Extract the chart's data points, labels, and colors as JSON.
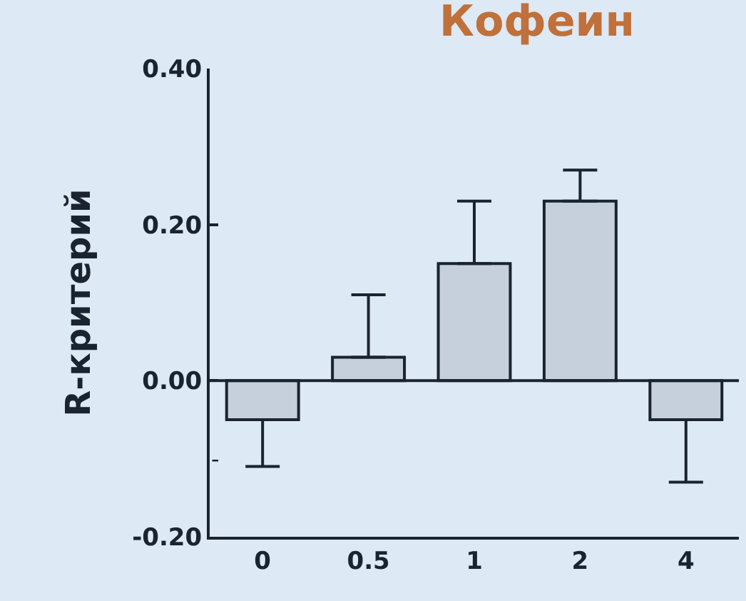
{
  "chart_data": {
    "type": "bar",
    "title": "Кофеин",
    "ylabel": "R-критерий",
    "categories": [
      "0",
      "0.5",
      "1",
      "2",
      "4"
    ],
    "series": [
      {
        "color": "#c5d0dc",
        "values": [
          -0.05,
          0.03,
          0.15,
          0.23,
          -0.05
        ],
        "errors": [
          [
            -0.11,
            -0.05
          ],
          [
            0.03,
            0.11
          ],
          [
            0.15,
            0.23
          ],
          [
            0.23,
            0.27
          ],
          [
            -0.13,
            -0.05
          ]
        ]
      }
    ],
    "ylim": [
      -0.2,
      0.4
    ],
    "yticks": [
      {
        "value": -0.2,
        "label": "-0.20"
      },
      {
        "value": 0,
        "label": "0.00"
      },
      {
        "value": 0.2,
        "label": "0.20"
      },
      {
        "value": 0.4,
        "label": "0.40"
      }
    ],
    "ref_lines": [
      {
        "axis": "y",
        "value": 0,
        "color": "#1a2430"
      }
    ],
    "annotations": [
      {
        "text": "-",
        "x": "0",
        "y": -0.1
      }
    ],
    "grid": false
  }
}
